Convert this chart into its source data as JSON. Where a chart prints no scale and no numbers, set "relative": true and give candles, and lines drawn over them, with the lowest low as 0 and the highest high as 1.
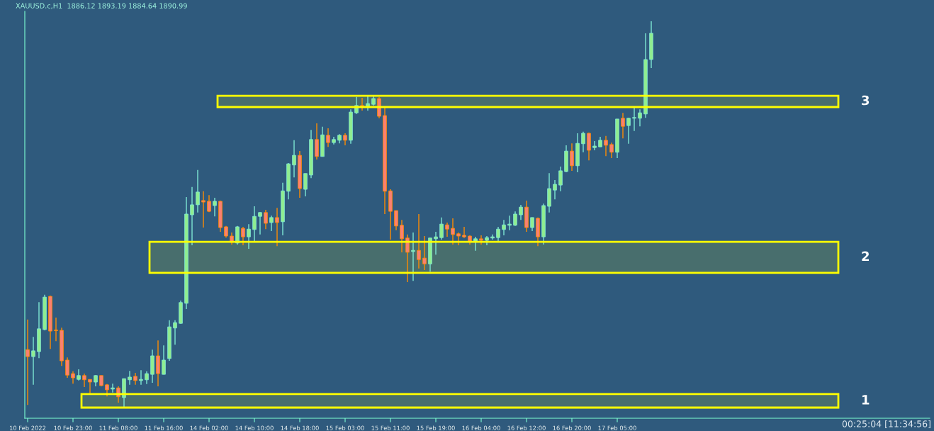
{
  "chart_data": {
    "type": "candlestick",
    "title": "XAUUSD.c,H1  1886.12 1893.19 1884.64 1890.99",
    "relative": true,
    "categories": [
      "10 Feb 2022",
      null,
      null,
      null,
      null,
      null,
      null,
      null,
      "10 Feb 23:00",
      null,
      null,
      null,
      null,
      null,
      null,
      null,
      "11 Feb 08:00",
      null,
      null,
      null,
      null,
      null,
      null,
      null,
      "11 Feb 16:00",
      null,
      null,
      null,
      null,
      null,
      null,
      null,
      "14 Feb 02:00",
      null,
      null,
      null,
      null,
      null,
      null,
      null,
      "14 Feb 10:00",
      null,
      null,
      null,
      null,
      null,
      null,
      null,
      "14 Feb 18:00",
      null,
      null,
      null,
      null,
      null,
      null,
      null,
      "15 Feb 03:00",
      null,
      null,
      null,
      null,
      null,
      null,
      null,
      "15 Feb 11:00",
      null,
      null,
      null,
      null,
      null,
      null,
      null,
      "15 Feb 19:00",
      null,
      null,
      null,
      null,
      null,
      null,
      null,
      "16 Feb 04:00",
      null,
      null,
      null,
      null,
      null,
      null,
      null,
      "16 Feb 12:00",
      null,
      null,
      null,
      null,
      null,
      null,
      null,
      "16 Feb 20:00",
      null,
      null,
      null,
      null,
      null,
      null,
      null,
      "17 Feb 05:00",
      null,
      null,
      null,
      null,
      null,
      null
    ],
    "ohlc": [
      [
        0.15,
        0.228,
        0.007,
        0.132
      ],
      [
        0.132,
        0.183,
        0.059,
        0.147
      ],
      [
        0.145,
        0.273,
        0.128,
        0.204
      ],
      [
        0.202,
        0.292,
        0.2,
        0.286
      ],
      [
        0.288,
        0.29,
        0.152,
        0.198
      ],
      [
        0.2,
        0.233,
        0.172,
        0.199
      ],
      [
        0.2,
        0.207,
        0.108,
        0.121
      ],
      [
        0.123,
        0.13,
        0.077,
        0.084
      ],
      [
        0.088,
        0.094,
        0.062,
        0.077
      ],
      [
        0.073,
        0.099,
        0.07,
        0.083
      ],
      [
        0.083,
        0.088,
        0.053,
        0.072
      ],
      [
        0.073,
        0.073,
        0.037,
        0.066
      ],
      [
        0.066,
        0.084,
        0.055,
        0.083
      ],
      [
        0.083,
        0.083,
        0.055,
        0.057
      ],
      [
        0.059,
        0.061,
        0.029,
        0.046
      ],
      [
        0.048,
        0.062,
        0.039,
        0.051
      ],
      [
        0.051,
        0.055,
        0.013,
        0.028
      ],
      [
        0.026,
        0.075,
        0.0,
        0.075
      ],
      [
        0.072,
        0.095,
        0.059,
        0.079
      ],
      [
        0.081,
        0.09,
        0.059,
        0.07
      ],
      [
        0.07,
        0.097,
        0.059,
        0.073
      ],
      [
        0.072,
        0.094,
        0.061,
        0.088
      ],
      [
        0.086,
        0.15,
        0.064,
        0.134
      ],
      [
        0.134,
        0.174,
        0.055,
        0.088
      ],
      [
        0.086,
        0.161,
        0.086,
        0.123
      ],
      [
        0.127,
        0.226,
        0.121,
        0.209
      ],
      [
        0.206,
        0.226,
        0.163,
        0.22
      ],
      [
        0.218,
        0.277,
        0.217,
        0.272
      ],
      [
        0.27,
        0.545,
        0.255,
        0.501
      ],
      [
        0.499,
        0.571,
        0.42,
        0.525
      ],
      [
        0.525,
        0.615,
        0.505,
        0.558
      ],
      [
        0.536,
        0.56,
        0.466,
        0.532
      ],
      [
        0.534,
        0.55,
        0.506,
        0.508
      ],
      [
        0.523,
        0.543,
        0.495,
        0.534
      ],
      [
        0.534,
        0.536,
        0.455,
        0.466
      ],
      [
        0.468,
        0.47,
        0.44,
        0.444
      ],
      [
        0.444,
        0.453,
        0.422,
        0.428
      ],
      [
        0.426,
        0.47,
        0.422,
        0.468
      ],
      [
        0.464,
        0.468,
        0.42,
        0.442
      ],
      [
        0.442,
        0.475,
        0.411,
        0.462
      ],
      [
        0.461,
        0.521,
        0.431,
        0.495
      ],
      [
        0.495,
        0.506,
        0.448,
        0.505
      ],
      [
        0.505,
        0.512,
        0.462,
        0.477
      ],
      [
        0.479,
        0.497,
        0.457,
        0.492
      ],
      [
        0.492,
        0.517,
        0.418,
        0.479
      ],
      [
        0.481,
        0.582,
        0.446,
        0.561
      ],
      [
        0.56,
        0.633,
        0.539,
        0.631
      ],
      [
        0.628,
        0.692,
        0.596,
        0.653
      ],
      [
        0.653,
        0.664,
        0.543,
        0.567
      ],
      [
        0.565,
        0.606,
        0.547,
        0.606
      ],
      [
        0.602,
        0.719,
        0.594,
        0.694
      ],
      [
        0.694,
        0.736,
        0.642,
        0.65
      ],
      [
        0.65,
        0.727,
        0.65,
        0.706
      ],
      [
        0.705,
        0.723,
        0.675,
        0.686
      ],
      [
        0.686,
        0.701,
        0.681,
        0.694
      ],
      [
        0.692,
        0.708,
        0.684,
        0.705
      ],
      [
        0.705,
        0.71,
        0.679,
        0.692
      ],
      [
        0.692,
        0.772,
        0.683,
        0.765
      ],
      [
        0.763,
        0.804,
        0.76,
        0.782
      ],
      [
        0.782,
        0.802,
        0.769,
        0.78
      ],
      [
        0.78,
        0.807,
        0.769,
        0.787
      ],
      [
        0.785,
        0.807,
        0.782,
        0.8
      ],
      [
        0.8,
        0.804,
        0.749,
        0.754
      ],
      [
        0.756,
        0.776,
        0.501,
        0.56
      ],
      [
        0.561,
        0.565,
        0.435,
        0.508
      ],
      [
        0.51,
        0.51,
        0.459,
        0.47
      ],
      [
        0.472,
        0.486,
        0.402,
        0.437
      ],
      [
        0.439,
        0.448,
        0.325,
        0.402
      ],
      [
        0.404,
        0.453,
        0.328,
        0.407
      ],
      [
        0.407,
        0.501,
        0.36,
        0.383
      ],
      [
        0.387,
        0.444,
        0.356,
        0.372
      ],
      [
        0.372,
        0.439,
        0.352,
        0.439
      ],
      [
        0.437,
        0.455,
        0.396,
        0.442
      ],
      [
        0.44,
        0.492,
        0.435,
        0.475
      ],
      [
        0.473,
        0.479,
        0.442,
        0.462
      ],
      [
        0.464,
        0.49,
        0.422,
        0.448
      ],
      [
        0.45,
        0.453,
        0.42,
        0.444
      ],
      [
        0.446,
        0.468,
        0.439,
        0.442
      ],
      [
        0.444,
        0.446,
        0.422,
        0.431
      ],
      [
        0.431,
        0.442,
        0.406,
        0.437
      ],
      [
        0.437,
        0.446,
        0.422,
        0.433
      ],
      [
        0.433,
        0.444,
        0.42,
        0.44
      ],
      [
        0.439,
        0.448,
        0.435,
        0.442
      ],
      [
        0.44,
        0.468,
        0.431,
        0.462
      ],
      [
        0.461,
        0.486,
        0.446,
        0.473
      ],
      [
        0.472,
        0.497,
        0.459,
        0.475
      ],
      [
        0.472,
        0.508,
        0.47,
        0.501
      ],
      [
        0.499,
        0.525,
        0.486,
        0.519
      ],
      [
        0.519,
        0.536,
        0.455,
        0.466
      ],
      [
        0.466,
        0.492,
        0.457,
        0.492
      ],
      [
        0.49,
        0.492,
        0.418,
        0.442
      ],
      [
        0.442,
        0.528,
        0.422,
        0.523
      ],
      [
        0.521,
        0.607,
        0.505,
        0.567
      ],
      [
        0.563,
        0.589,
        0.539,
        0.578
      ],
      [
        0.576,
        0.624,
        0.56,
        0.613
      ],
      [
        0.611,
        0.679,
        0.609,
        0.664
      ],
      [
        0.664,
        0.684,
        0.613,
        0.626
      ],
      [
        0.626,
        0.71,
        0.609,
        0.684
      ],
      [
        0.683,
        0.714,
        0.661,
        0.71
      ],
      [
        0.71,
        0.712,
        0.64,
        0.666
      ],
      [
        0.673,
        0.69,
        0.666,
        0.677
      ],
      [
        0.675,
        0.701,
        0.675,
        0.692
      ],
      [
        0.692,
        0.703,
        0.651,
        0.679
      ],
      [
        0.681,
        0.686,
        0.646,
        0.661
      ],
      [
        0.661,
        0.747,
        0.646,
        0.747
      ],
      [
        0.749,
        0.763,
        0.697,
        0.728
      ],
      [
        0.73,
        0.75,
        0.683,
        0.749
      ],
      [
        0.749,
        0.776,
        0.716,
        0.75
      ],
      [
        0.749,
        0.772,
        0.728,
        0.763
      ],
      [
        0.76,
        0.969,
        0.75,
        0.901
      ],
      [
        0.901,
        1.0,
        0.879,
        0.969
      ]
    ],
    "bands": [
      {
        "axis": "y",
        "from": 0.0,
        "to": 0.035,
        "label": "1",
        "color": "#ffff00"
      },
      {
        "axis": "y",
        "from": 0.349,
        "to": 0.429,
        "label": "2",
        "color": "#ffff00"
      },
      {
        "axis": "y",
        "from": 0.778,
        "to": 0.807,
        "label": "3",
        "color": "#ffff00"
      }
    ],
    "annotations": [
      "00:25:04 [11:34:56]"
    ]
  }
}
